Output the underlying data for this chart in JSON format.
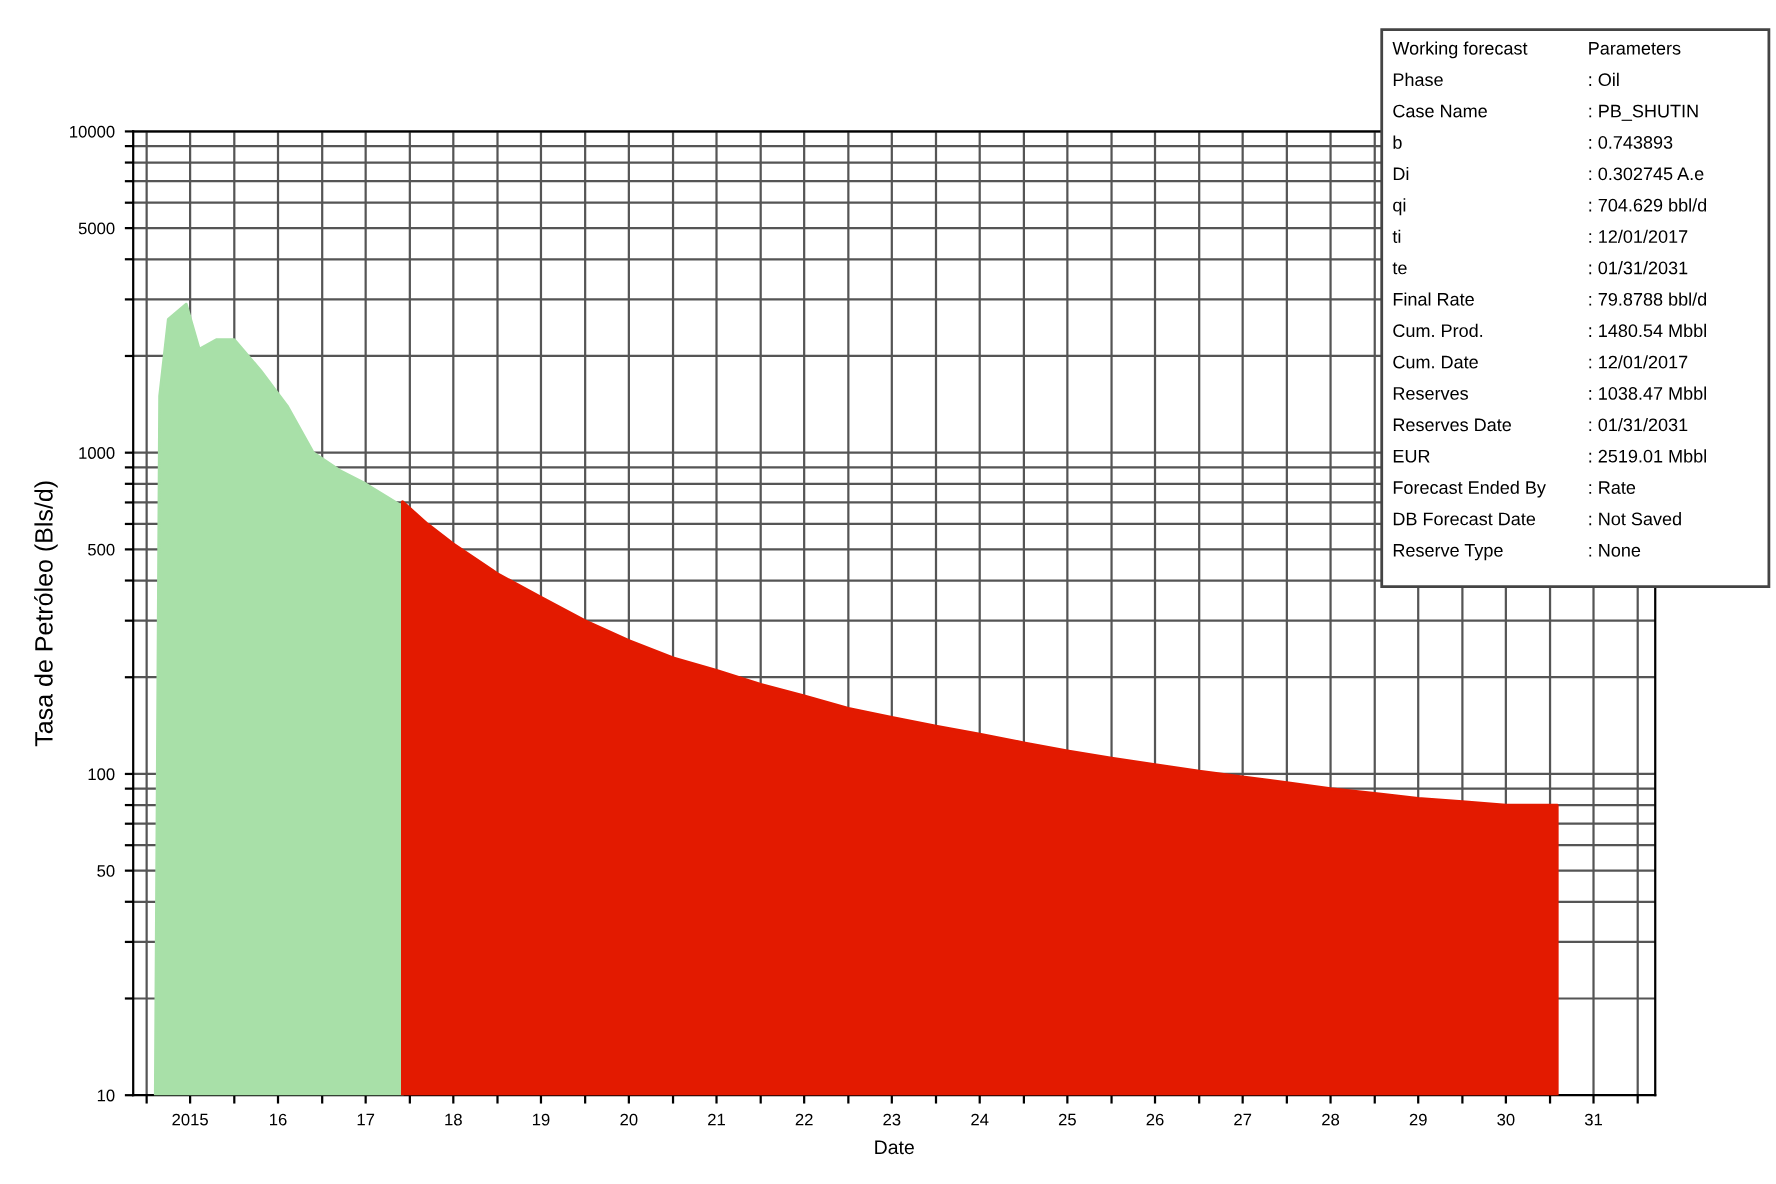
{
  "chart_data": {
    "type": "area",
    "xlabel": "Date",
    "ylabel": "Tasa de Petróleo (Bls/d)",
    "log": "y",
    "grid": true,
    "legend": false,
    "xlim": [
      "2014-11-06",
      "2032-03-14"
    ],
    "ylim": [
      10,
      10000
    ],
    "xticks": [
      {
        "value": "2015-01-01",
        "label": null
      },
      {
        "value": "2015-07-01",
        "label": "2015"
      },
      {
        "value": "2016-01-01",
        "label": null
      },
      {
        "value": "2016-07-01",
        "label": "16"
      },
      {
        "value": "2017-01-01",
        "label": null
      },
      {
        "value": "2017-07-01",
        "label": "17"
      },
      {
        "value": "2018-01-01",
        "label": null
      },
      {
        "value": "2018-07-01",
        "label": "18"
      },
      {
        "value": "2019-01-01",
        "label": null
      },
      {
        "value": "2019-07-01",
        "label": "19"
      },
      {
        "value": "2020-01-01",
        "label": null
      },
      {
        "value": "2020-07-01",
        "label": "20"
      },
      {
        "value": "2021-01-01",
        "label": null
      },
      {
        "value": "2021-07-01",
        "label": "21"
      },
      {
        "value": "2022-01-01",
        "label": null
      },
      {
        "value": "2022-07-01",
        "label": "22"
      },
      {
        "value": "2023-01-01",
        "label": null
      },
      {
        "value": "2023-07-01",
        "label": "23"
      },
      {
        "value": "2024-01-01",
        "label": null
      },
      {
        "value": "2024-07-01",
        "label": "24"
      },
      {
        "value": "2025-01-01",
        "label": null
      },
      {
        "value": "2025-07-01",
        "label": "25"
      },
      {
        "value": "2026-01-01",
        "label": null
      },
      {
        "value": "2026-07-01",
        "label": "26"
      },
      {
        "value": "2027-01-01",
        "label": null
      },
      {
        "value": "2027-07-01",
        "label": "27"
      },
      {
        "value": "2028-01-01",
        "label": null
      },
      {
        "value": "2028-07-01",
        "label": "28"
      },
      {
        "value": "2029-01-01",
        "label": null
      },
      {
        "value": "2029-07-01",
        "label": "29"
      },
      {
        "value": "2030-01-01",
        "label": null
      },
      {
        "value": "2030-07-01",
        "label": "30"
      },
      {
        "value": "2031-01-01",
        "label": null
      },
      {
        "value": "2031-07-01",
        "label": "31"
      },
      {
        "value": "2032-01-01",
        "label": null
      }
    ],
    "yticks": [
      10,
      {
        "value": 20,
        "label": null
      },
      {
        "value": 30,
        "label": null
      },
      {
        "value": 40,
        "label": null
      },
      50,
      {
        "value": 60,
        "label": null
      },
      {
        "value": 70,
        "label": null
      },
      {
        "value": 80,
        "label": null
      },
      {
        "value": 90,
        "label": null
      },
      100,
      {
        "value": 200,
        "label": null
      },
      {
        "value": 300,
        "label": null
      },
      {
        "value": 400,
        "label": null
      },
      500,
      {
        "value": 600,
        "label": null
      },
      {
        "value": 700,
        "label": null
      },
      {
        "value": 800,
        "label": null
      },
      {
        "value": 900,
        "label": null
      },
      1000,
      {
        "value": 2000,
        "label": null
      },
      {
        "value": 3000,
        "label": null
      },
      {
        "value": 4000,
        "label": null
      },
      5000,
      {
        "value": 6000,
        "label": null
      },
      {
        "value": 7000,
        "label": null
      },
      {
        "value": 8000,
        "label": null
      },
      {
        "value": 9000,
        "label": null
      },
      10000
    ],
    "series": [
      {
        "color": "#a8e0a8",
        "x": [
          "2015-02-06",
          "2015-02-24",
          "2015-04-01",
          "2015-06-15",
          "2015-08-08",
          "2015-10-20",
          "2016-01-01",
          "2016-04-20",
          "2016-08-08",
          "2016-11-25",
          "2017-03-15",
          "2017-07-01",
          "2017-12-01"
        ],
        "values": [
          10,
          1500,
          2600,
          2900,
          2100,
          2250,
          2250,
          1800,
          1400,
          1000,
          880,
          800,
          680
        ]
      },
      {
        "color": "#e31a00",
        "x": [
          "2017-12-01",
          "2018-03-15",
          "2018-07-01",
          "2019-01-01",
          "2019-07-01",
          "2020-01-01",
          "2020-07-01",
          "2021-01-01",
          "2021-07-01",
          "2022-01-01",
          "2022-07-01",
          "2023-01-01",
          "2023-07-01",
          "2024-01-01",
          "2024-07-01",
          "2025-01-01",
          "2025-07-01",
          "2026-01-01",
          "2026-07-01",
          "2027-01-01",
          "2027-07-01",
          "2028-01-01",
          "2028-07-01",
          "2029-01-01",
          "2029-07-01",
          "2030-01-01",
          "2030-07-01",
          "2031-01-31"
        ],
        "values": [
          704,
          600,
          520,
          420,
          355,
          300,
          260,
          230,
          210,
          190,
          175,
          160,
          150,
          141,
          133,
          125,
          118,
          112,
          107,
          102,
          98,
          94,
          90,
          87,
          84,
          82,
          80,
          79.9
        ]
      }
    ],
    "annotations": [
      "Working forecast",
      "Parameters",
      "Phase",
      ": Oil",
      "Case Name",
      ": PB_SHUTIN",
      "b",
      ": 0.743893",
      "Di",
      ": 0.302745 A.e",
      "qi",
      ": 704.629 bbl/d",
      "ti",
      ": 12/01/2017",
      "te",
      ": 01/31/2031",
      "Final Rate",
      ": 79.8788 bbl/d",
      "Cum. Prod.",
      ": 1480.54 Mbbl",
      "Cum. Date",
      ": 12/01/2017",
      "Reserves",
      ": 1038.47 Mbbl",
      "Reserves Date",
      ": 01/31/2031",
      "EUR",
      ": 2519.01 Mbbl",
      "Forecast Ended By",
      ": Rate",
      "DB Forecast Date",
      ": Not Saved",
      "Reserve Type",
      ": None"
    ]
  }
}
